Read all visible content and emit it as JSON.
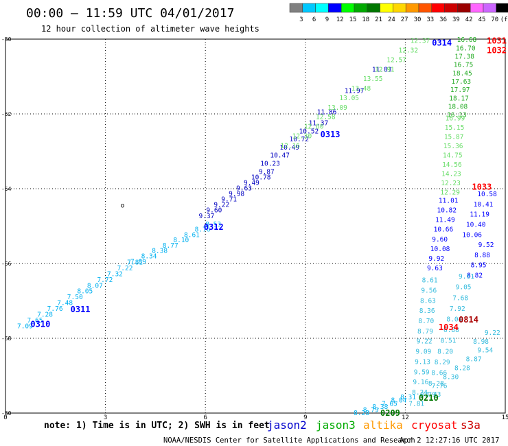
{
  "header": {
    "title": "00:00 – 11:59 UTC 04/01/2017",
    "subtitle": "12 hour collection of altimeter wave heights"
  },
  "colors": {
    "black": "#000000",
    "grid": "#000000",
    "blue": "#0000ff",
    "navy": "#0000c0",
    "dark_navy": "#1b1b99",
    "sky": "#00b0f0",
    "cyan": "#33bbdd",
    "light_green": "#66dd66",
    "green": "#22aa22",
    "dark_green": "#007700",
    "orange": "#ff9900",
    "red": "#ff0000",
    "dark_red": "#aa0000"
  },
  "color_scale": {
    "labels": [
      "3",
      "6",
      "9",
      "12",
      "15",
      "18",
      "21",
      "24",
      "27",
      "30",
      "33",
      "36",
      "39",
      "42",
      "45",
      "70",
      "(ft)"
    ],
    "swatches": [
      "#808080",
      "#00c8ff",
      "#00ffff",
      "#0000ff",
      "#00ff00",
      "#00aa00",
      "#007700",
      "#ffff00",
      "#ffd700",
      "#ff9900",
      "#ff5500",
      "#ff0000",
      "#cc0000",
      "#990000",
      "#ff66ff",
      "#cc66ff",
      "#000000"
    ]
  },
  "footer": {
    "note": "note: 1) Time is in UTC; 2) SWH is in feet",
    "credit": "NOAA/NESDIS Center for Satellite Applications and Research",
    "timestamp": "Apr  2 12:27:16 UTC 2017",
    "legend": [
      {
        "label": "jason2",
        "color": "#0000cc"
      },
      {
        "label": "jason3",
        "color": "#00aa00"
      },
      {
        "label": "altika",
        "color": "#ff9900"
      },
      {
        "label": "cryosat",
        "color": "#ff0000"
      },
      {
        "label": "s3a",
        "color": "#cc0000"
      }
    ]
  },
  "chart_data": {
    "type": "scatter",
    "title": "00:00 – 11:59 UTC 04/01/2017",
    "subtitle": "12 hour collection of altimeter wave heights",
    "x_ticks": [
      "0",
      "3",
      "6",
      "9",
      "12",
      "15"
    ],
    "y_ticks": [
      "-50",
      "-52",
      "-54",
      "-56",
      "-58",
      "-60"
    ],
    "xlim": [
      0,
      15
    ],
    "ylim": [
      -60,
      -50
    ],
    "grid": "dotted",
    "stray_marker": {
      "x": 3.45,
      "y": -54.5,
      "text": "o"
    },
    "time_labels": [
      {
        "x": 0.75,
        "y": -57.62,
        "text": "0310",
        "color": "blue"
      },
      {
        "x": 1.95,
        "y": -57.23,
        "text": "0311",
        "color": "blue"
      },
      {
        "x": 5.95,
        "y": -55.03,
        "text": "0312",
        "color": "blue"
      },
      {
        "x": 9.45,
        "y": -52.55,
        "text": "0313",
        "color": "blue"
      },
      {
        "x": 12.8,
        "y": -50.1,
        "text": "0314",
        "color": "blue"
      },
      {
        "x": 14.7,
        "y": -50.05,
        "text": "1031",
        "color": "red"
      },
      {
        "x": 14.7,
        "y": -50.3,
        "text": "1032",
        "color": "red"
      },
      {
        "x": 14.0,
        "y": -53.95,
        "text": "1033",
        "color": "red"
      },
      {
        "x": 13.6,
        "y": -57.5,
        "text": "0814",
        "color": "dark_red"
      },
      {
        "x": 13.0,
        "y": -57.71,
        "text": "1034",
        "color": "red"
      },
      {
        "x": 12.4,
        "y": -59.6,
        "text": "0210",
        "color": "dark_green"
      },
      {
        "x": 11.25,
        "y": -60.0,
        "text": "0209",
        "color": "dark_green"
      }
    ],
    "series": [
      {
        "name": "jason2",
        "color": "sky",
        "start": [
          0.35,
          -57.68
        ],
        "end": [
          3.65,
          -55.97
        ],
        "values": [
          "7.09",
          "7.65",
          "7.28",
          "7.76",
          "7.48",
          "7.50",
          "8.05",
          "8.07",
          "7.72",
          "7.32",
          "7.22",
          "7.81"
        ]
      },
      {
        "name": "jason2",
        "color": "sky",
        "start": [
          3.75,
          -55.95
        ],
        "end": [
          6.0,
          -54.95
        ],
        "values": [
          "7.89",
          "8.34",
          "8.38",
          "8.77",
          "8.10",
          "8.61",
          "8.76",
          "8.53"
        ]
      },
      {
        "name": "jason2",
        "color": "navy",
        "start": [
          5.8,
          -54.73
        ],
        "end": [
          7.6,
          -53.55
        ],
        "values": [
          "9.37",
          "9.60",
          "9.22",
          "9.71",
          "9.98",
          "9.63",
          "9.49",
          "10.78",
          "9.87"
        ]
      },
      {
        "name": "jason2",
        "color": "navy",
        "start": [
          7.65,
          -53.33
        ],
        "end": [
          9.1,
          -52.25
        ],
        "values": [
          "10.23",
          "10.47",
          "10.49",
          "10.72",
          "10.52",
          "11.37"
        ]
      },
      {
        "name": "jason2",
        "color": "navy",
        "start": [
          9.35,
          -51.95
        ],
        "end": [
          11.0,
          -50.82
        ],
        "values": [
          "11.86",
          "11.97",
          "11.83"
        ]
      },
      {
        "name": "jason3",
        "color": "light_green",
        "start": [
          8.25,
          -52.85
        ],
        "end": [
          12.15,
          -50.05
        ],
        "values": [
          "12.16",
          "12.30",
          "12.60",
          "12.58",
          "13.09",
          "13.05",
          "13.48",
          "13.55",
          "12.91",
          "12.57",
          "12.32",
          "12.37"
        ]
      },
      {
        "name": "jason3",
        "color": "green",
        "start": [
          13.55,
          -50.02
        ],
        "end": [
          13.25,
          -52.03
        ],
        "values": [
          "16.68",
          "16.70",
          "17.38",
          "16.75",
          "18.45",
          "17.63",
          "17.97",
          "18.17",
          "18.08",
          "16.13"
        ]
      },
      {
        "name": "jason3",
        "color": "light_green",
        "start": [
          13.2,
          -52.12
        ],
        "end": [
          13.05,
          -54.1
        ],
        "values": [
          "16.99",
          "15.15",
          "15.87",
          "15.36",
          "14.75",
          "14.56",
          "14.23",
          "12.23",
          "12.29"
        ]
      },
      {
        "name": "jason2",
        "color": "blue",
        "start": [
          13.0,
          -54.32
        ],
        "end": [
          12.65,
          -56.13
        ],
        "values": [
          "11.01",
          "10.82",
          "11.49",
          "10.66",
          "9.60",
          "10.08",
          "9.92",
          "9.63"
        ]
      },
      {
        "name": "jason2",
        "color": "blue",
        "start": [
          14.75,
          -54.15
        ],
        "end": [
          13.85,
          -56.32
        ],
        "values": [
          "10.58",
          "10.41",
          "11.19",
          "10.40",
          "10.06",
          "9.52",
          "8.88",
          "8.95",
          "8.82"
        ]
      },
      {
        "name": "jason2",
        "color": "cyan",
        "start": [
          12.5,
          -56.45
        ],
        "end": [
          12.2,
          -59.45
        ],
        "values": [
          "8.61",
          "9.56",
          "8.63",
          "8.36",
          "8.70",
          "8.79",
          "9.22",
          "9.09",
          "9.13",
          "9.59",
          "9.16",
          "8.24"
        ]
      },
      {
        "name": "jason2",
        "color": "cyan",
        "start": [
          13.6,
          -56.35
        ],
        "end": [
          12.6,
          -59.5
        ],
        "values": [
          "9.61",
          "9.05",
          "7.68",
          "7.92",
          "8.04",
          "6.88",
          "8.51",
          "8.20",
          "8.29",
          "8.66",
          "8.28",
          "8.43"
        ]
      },
      {
        "name": "jason2",
        "color": "cyan",
        "start": [
          14.85,
          -57.85
        ],
        "end": [
          12.1,
          -59.75
        ],
        "values": [
          "9.22",
          "8.98",
          "9.54",
          "8.87",
          "8.28",
          "8.30",
          "7.76",
          "8.79",
          "7.81"
        ]
      },
      {
        "name": "jason2",
        "color": "sky",
        "start": [
          10.45,
          -60.0
        ],
        "end": [
          11.85,
          -59.58
        ],
        "values": [
          "8.28",
          "8.79",
          "8.38",
          "7.65",
          "8.04",
          "8.31"
        ]
      }
    ]
  }
}
